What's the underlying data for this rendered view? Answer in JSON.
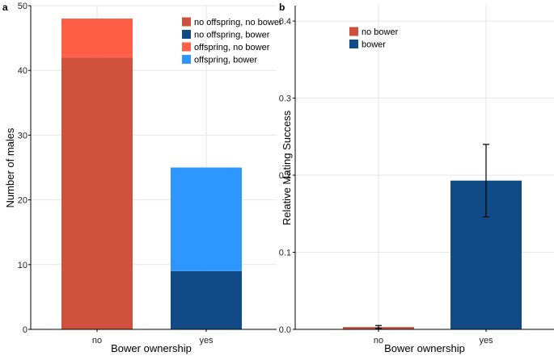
{
  "chart_data": [
    {
      "type": "bar",
      "panel": "a",
      "stacked": true,
      "title": "",
      "xlabel": "Bower ownership",
      "ylabel": "Number of males",
      "categories": [
        "no",
        "yes"
      ],
      "ylim": [
        0,
        50
      ],
      "yticks": [
        0,
        10,
        20,
        30,
        40,
        50
      ],
      "legend_position": "top-right",
      "series": [
        {
          "name": "no offspring, no bower",
          "color": "#cd513d",
          "values": [
            42,
            0
          ]
        },
        {
          "name": "no offspring, bower",
          "color": "#114b87",
          "values": [
            0,
            9
          ]
        },
        {
          "name": "offspring, no bower",
          "color": "#ff5f47",
          "values": [
            6,
            0
          ]
        },
        {
          "name": "offspring, bower",
          "color": "#2e97ff",
          "values": [
            0,
            16
          ]
        }
      ]
    },
    {
      "type": "bar",
      "panel": "b",
      "stacked": false,
      "title": "",
      "xlabel": "Bower ownership",
      "ylabel": "Relative Mating Success",
      "categories": [
        "no",
        "yes"
      ],
      "ylim": [
        0,
        0.42
      ],
      "yticks": [
        0.0,
        0.1,
        0.2,
        0.3,
        0.4
      ],
      "tick_labels": [
        "0.0",
        "0.1",
        "0.2",
        "0.3",
        "0.4"
      ],
      "legend_position": "top-left",
      "series": [
        {
          "name": "no bower",
          "color": "#cd513d",
          "values": [
            0.003,
            null
          ],
          "errors": [
            [
              0.001,
              0.005
            ],
            null
          ]
        },
        {
          "name": "bower",
          "color": "#114b87",
          "values": [
            null,
            0.193
          ],
          "errors": [
            null,
            [
              0.146,
              0.24
            ]
          ]
        }
      ]
    }
  ]
}
